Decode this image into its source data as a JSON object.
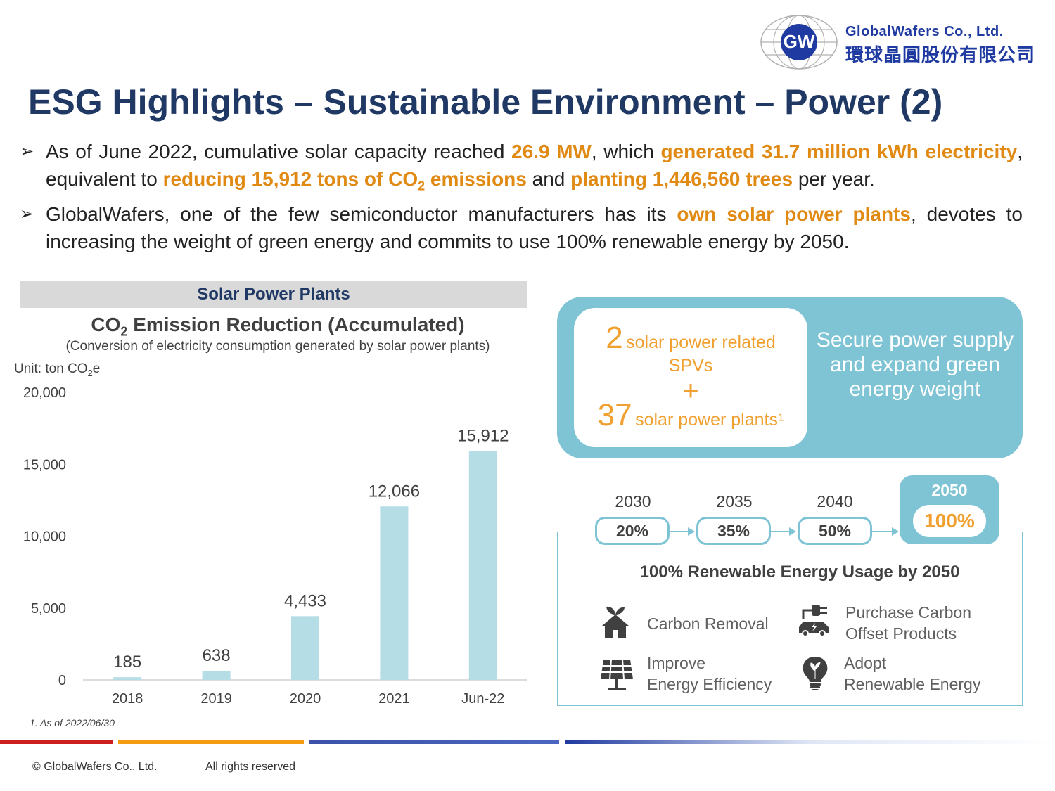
{
  "logo": {
    "badge": "GW",
    "company_en": "GlobalWafers Co., Ltd.",
    "company_zh": "環球晶圓股份有限公司"
  },
  "title": "ESG Highlights – Sustainable Environment – Power (2)",
  "bullets": {
    "b1": {
      "t1": "As of June 2022, cumulative solar capacity reached ",
      "h1": "26.9 MW",
      "t2": ", which ",
      "h2": "generated 31.7 million kWh electricity",
      "t3": ", equivalent to ",
      "h3a": "reducing 15,912 tons of CO",
      "h3sub": "2",
      "h3b": " emissions",
      "t4": " and ",
      "h4": "planting 1,446,560 trees",
      "t5": " per year."
    },
    "b2": {
      "t1": "GlobalWafers, one of the few semiconductor manufacturers has its ",
      "h1": "own solar power plants",
      "t2": ", devotes to increasing the weight of green energy and commits to use 100% renewable energy by 2050."
    }
  },
  "section_header": "Solar Power Plants",
  "chart_data": {
    "type": "bar",
    "title_a": "CO",
    "title_sub": "2",
    "title_b": " Emission Reduction (Accumulated)",
    "subtitle": "(Conversion of electricity consumption generated by solar power plants)",
    "unit_a": "Unit: ton CO",
    "unit_sub": "2",
    "unit_b": "e",
    "categories": [
      "2018",
      "2019",
      "2020",
      "2021",
      "Jun-22"
    ],
    "values": [
      185,
      638,
      4433,
      12066,
      15912
    ],
    "value_labels": [
      "185",
      "638",
      "4,433",
      "12,066",
      "15,912"
    ],
    "ylim": [
      0,
      20000
    ],
    "yticks": [
      0,
      5000,
      10000,
      15000,
      20000
    ],
    "ytick_labels": [
      "0",
      "5,000",
      "10,000",
      "15,000",
      "20,000"
    ],
    "bar_color": "#b4dde6",
    "grid": false
  },
  "footnote": "1. As of 2022/06/30",
  "spv": {
    "num1": "2",
    "text1": "solar power related",
    "text1b": "SPVs",
    "plus": "+",
    "num2": "37",
    "text2": "solar power plants",
    "sup": "1"
  },
  "secure": "Secure power supply and expand green energy weight",
  "timeline": [
    {
      "year": "2030",
      "pct": "20%"
    },
    {
      "year": "2035",
      "pct": "35%"
    },
    {
      "year": "2040",
      "pct": "50%"
    }
  ],
  "goal": {
    "year": "2050",
    "pct": "100%"
  },
  "renew_title": "100% Renewable Energy Usage by 2050",
  "actions": {
    "carbon_removal": "Carbon Removal",
    "purchase_l1": "Purchase Carbon",
    "purchase_l2": "Offset Products",
    "improve_l1": "Improve",
    "improve_l2": "Energy Efficiency",
    "adopt_l1": "Adopt",
    "adopt_l2": "Renewable Energy"
  },
  "footer": {
    "copyright": "© GlobalWafers  Co., Ltd.",
    "rights": "All rights reserved"
  },
  "colors": {
    "title": "#1f3864",
    "highlight": "#e08a14",
    "accent_teal": "#7ec4d4",
    "orange": "#f0a030"
  }
}
